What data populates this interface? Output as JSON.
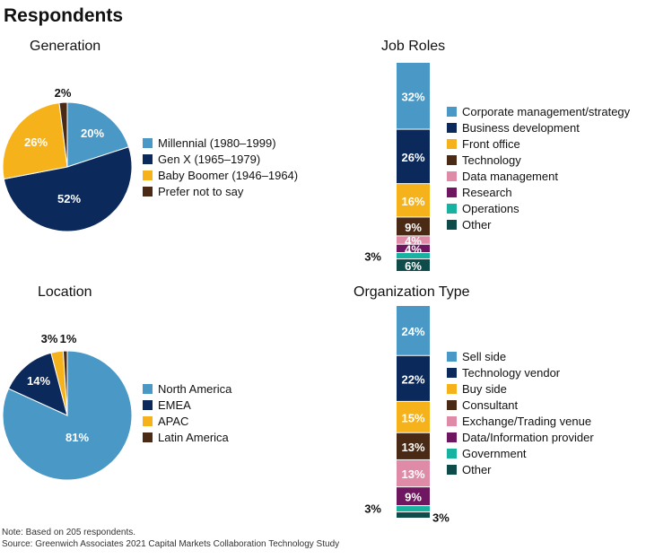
{
  "page": {
    "title": "Respondents",
    "note": "Note:  Based on 205 respondents.",
    "source": "Source: Greenwich Associates 2021 Capital Markets Collaboration Technology Study"
  },
  "colors": {
    "light_blue": "#4a98c5",
    "navy": "#0b2a5b",
    "gold": "#f6b21b",
    "brown": "#4a2a14",
    "pink": "#df8aa6",
    "purple": "#6e1760",
    "teal": "#17b3a0",
    "dark_teal": "#0e4b4b"
  },
  "chart_data": [
    {
      "id": "generation",
      "type": "pie",
      "title": "Generation",
      "categories": [
        "Millennial (1980–1999)",
        "Gen X (1965–1979)",
        "Baby Boomer (1946–1964)",
        "Prefer not to say"
      ],
      "values": [
        20,
        52,
        26,
        2
      ],
      "labels": [
        "20%",
        "52%",
        "26%",
        "2%"
      ],
      "colors": [
        "#4a98c5",
        "#0b2a5b",
        "#f6b21b",
        "#4a2a14"
      ]
    },
    {
      "id": "job_roles",
      "type": "bar",
      "stacked": true,
      "title": "Job Roles",
      "categories": [
        "Corporate management/strategy",
        "Business development",
        "Front office",
        "Technology",
        "Data management",
        "Research",
        "Operations",
        "Other"
      ],
      "values": [
        32,
        26,
        16,
        9,
        4,
        4,
        3,
        6
      ],
      "labels": [
        "32%",
        "26%",
        "16%",
        "9%",
        "4%",
        "4%",
        "3%",
        "6%"
      ],
      "colors": [
        "#4a98c5",
        "#0b2a5b",
        "#f6b21b",
        "#4a2a14",
        "#df8aa6",
        "#6e1760",
        "#17b3a0",
        "#0e4b4b"
      ]
    },
    {
      "id": "location",
      "type": "pie",
      "title": "Location",
      "categories": [
        "North America",
        "EMEA",
        "APAC",
        "Latin America"
      ],
      "values": [
        81,
        14,
        3,
        1
      ],
      "labels": [
        "81%",
        "14%",
        "3%",
        "1%"
      ],
      "colors": [
        "#4a98c5",
        "#0b2a5b",
        "#f6b21b",
        "#4a2a14"
      ]
    },
    {
      "id": "org_type",
      "type": "bar",
      "stacked": true,
      "title": "Organization Type",
      "categories": [
        "Sell side",
        "Technology vendor",
        "Buy side",
        "Consultant",
        "Exchange/Trading venue",
        "Data/Information provider",
        "Government",
        "Other"
      ],
      "values": [
        24,
        22,
        15,
        13,
        13,
        9,
        3,
        3
      ],
      "labels": [
        "24%",
        "22%",
        "15%",
        "13%",
        "13%",
        "9%",
        "3%",
        "3%"
      ],
      "colors": [
        "#4a98c5",
        "#0b2a5b",
        "#f6b21b",
        "#4a2a14",
        "#df8aa6",
        "#6e1760",
        "#17b3a0",
        "#0e4b4b"
      ]
    }
  ]
}
